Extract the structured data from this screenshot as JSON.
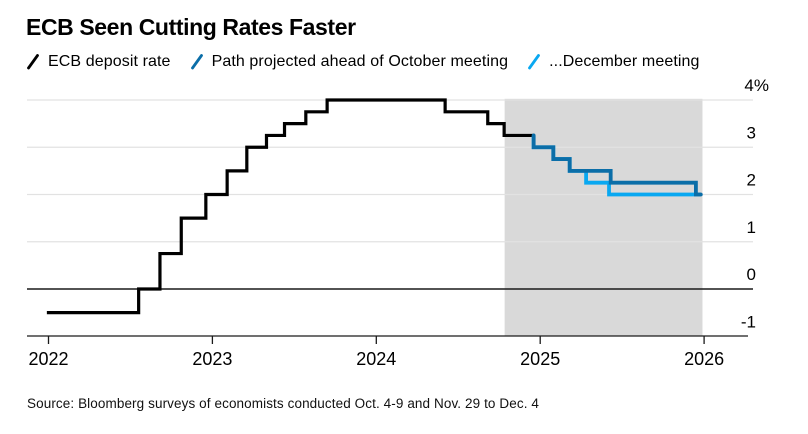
{
  "header": {
    "title": "ECB Seen Cutting Rates Faster"
  },
  "legend": [
    {
      "label": "ECB deposit rate",
      "color": "#000000"
    },
    {
      "label": "Path projected ahead of October meeting",
      "color": "#0b6ea8"
    },
    {
      "label": "...December meeting",
      "color": "#09a8f1"
    }
  ],
  "source": "Source: Bloomberg surveys of economists conducted Oct. 4-9 and Nov. 29 to Dec. 4",
  "chart_data": {
    "type": "line",
    "subtype": "step-after",
    "title": "ECB Seen Cutting Rates Faster",
    "grid": "horizontal",
    "legend_position": "top",
    "x_axis": {
      "ticks": [
        "2022",
        "2023",
        "2024",
        "2025",
        "2026"
      ],
      "tick_values": [
        2022,
        2023,
        2024,
        2025,
        2026
      ],
      "range": [
        2021.99,
        2026.3
      ]
    },
    "y_axis": {
      "unit": "%",
      "ticks": [
        {
          "v": 4,
          "label": "4%"
        },
        {
          "v": 3,
          "label": "3"
        },
        {
          "v": 2,
          "label": "2"
        },
        {
          "v": 1,
          "label": "1"
        },
        {
          "v": 0,
          "label": "0"
        },
        {
          "v": -1,
          "label": "-1"
        }
      ],
      "range": [
        -1.1,
        4
      ]
    },
    "projection_band": {
      "from": 2024.783,
      "to": 2025.99,
      "color": "#d9d9d9"
    },
    "series": [
      {
        "name": "ECB deposit rate",
        "color": "#000000",
        "width": 3.2,
        "cap": "butt",
        "steps": [
          [
            2021.99,
            -0.5
          ],
          [
            2022.55,
            0.0
          ],
          [
            2022.68,
            0.75
          ],
          [
            2022.81,
            1.5
          ],
          [
            2022.96,
            2.0
          ],
          [
            2023.09,
            2.5
          ],
          [
            2023.21,
            3.0
          ],
          [
            2023.33,
            3.25
          ],
          [
            2023.44,
            3.5
          ],
          [
            2023.57,
            3.75
          ],
          [
            2023.7,
            4.0
          ],
          [
            2024.42,
            3.75
          ],
          [
            2024.68,
            3.5
          ],
          [
            2024.78,
            3.25
          ]
        ],
        "end_x": 2024.96
      },
      {
        "name": "...December meeting",
        "color": "#09a8f1",
        "width": 3.8,
        "cap": "butt",
        "start_v": 3.25,
        "steps": [
          [
            2024.96,
            3.0
          ],
          [
            2025.08,
            2.75
          ],
          [
            2025.18,
            2.5
          ],
          [
            2025.28,
            2.25
          ],
          [
            2025.42,
            2.0
          ]
        ],
        "end_x": 2025.98
      },
      {
        "name": "Path projected ahead of October meeting",
        "color": "#0b6ea8",
        "width": 3.8,
        "cap": "round",
        "start_v": 3.25,
        "steps": [
          [
            2024.96,
            3.0
          ],
          [
            2025.08,
            2.75
          ],
          [
            2025.18,
            2.5
          ],
          [
            2025.43,
            2.25
          ],
          [
            2025.95,
            2.0
          ]
        ],
        "end_x": 2025.98
      }
    ]
  }
}
